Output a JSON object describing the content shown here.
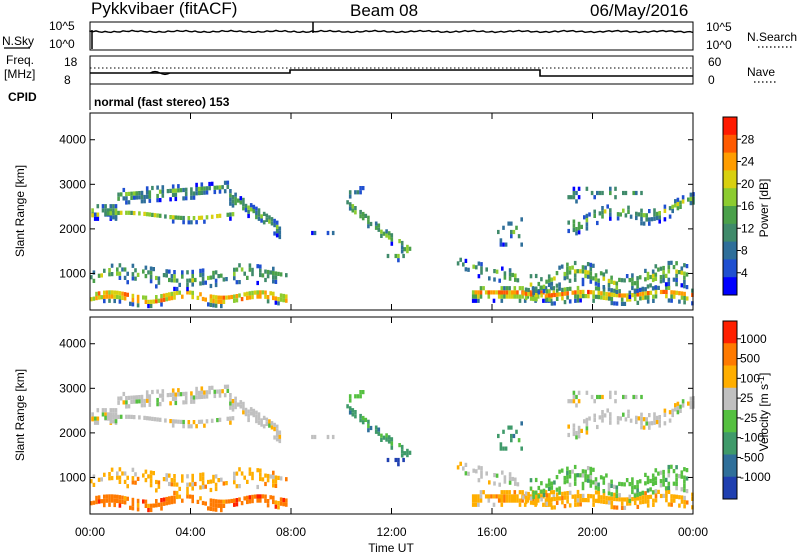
{
  "header": {
    "station": "Pykkvibaer (fitACF)",
    "beam": "Beam 08",
    "date": "06/May/2016"
  },
  "top_panels": {
    "noise": {
      "left_label": "N.Sky",
      "right_label": "N.Search",
      "left_ticks": [
        "10^5",
        "10^0"
      ],
      "right_ticks": [
        "10^5",
        "10^0"
      ]
    },
    "freq": {
      "left_label_1": "Freq.",
      "left_label_2": "[MHz]",
      "right_label": "Nave",
      "left_ticks": [
        "18",
        "8"
      ],
      "right_ticks": [
        "60",
        "0"
      ]
    },
    "cpid": {
      "label": "CPID",
      "text": "normal (fast stereo) 153"
    }
  },
  "chart_data": [
    {
      "type": "heatmap",
      "quantity": "power",
      "ylabel": "Slant Range [km]",
      "xlabel": "",
      "ylim": [
        180,
        4600
      ],
      "yticks": [
        "1000",
        "2000",
        "3000",
        "4000"
      ],
      "colorbar": {
        "label": "Power [dB]",
        "range": [
          0,
          32
        ],
        "ticks": [
          "4",
          "8",
          "12",
          "16",
          "20",
          "24",
          "28"
        ],
        "colors": [
          "#0000ff",
          "#1f4fd0",
          "#2f6f9a",
          "#3f8a6a",
          "#4aa04a",
          "#8ccc30",
          "#d8d010",
          "#ff9d00",
          "#ff5a00",
          "#ff1a00"
        ]
      }
    },
    {
      "type": "heatmap",
      "quantity": "velocity",
      "ylabel": "Slant Range [km]",
      "xlabel": "Time UT",
      "ylim": [
        180,
        4600
      ],
      "yticks": [
        "1000",
        "2000",
        "3000",
        "4000"
      ],
      "xticks": [
        "00:00",
        "04:00",
        "08:00",
        "12:00",
        "16:00",
        "20:00",
        "00:00"
      ],
      "colorbar": {
        "label": "Velocity [m s-1]",
        "ticks": [
          "1000",
          "500",
          "100",
          "25",
          "-25",
          "-100",
          "-500",
          "-1000"
        ],
        "colors": [
          "#1f3fb0",
          "#2f6f9a",
          "#3f9a6a",
          "#55c040",
          "#c0c0c0",
          "#ffae00",
          "#ff7a00",
          "#ff2000"
        ]
      }
    }
  ]
}
